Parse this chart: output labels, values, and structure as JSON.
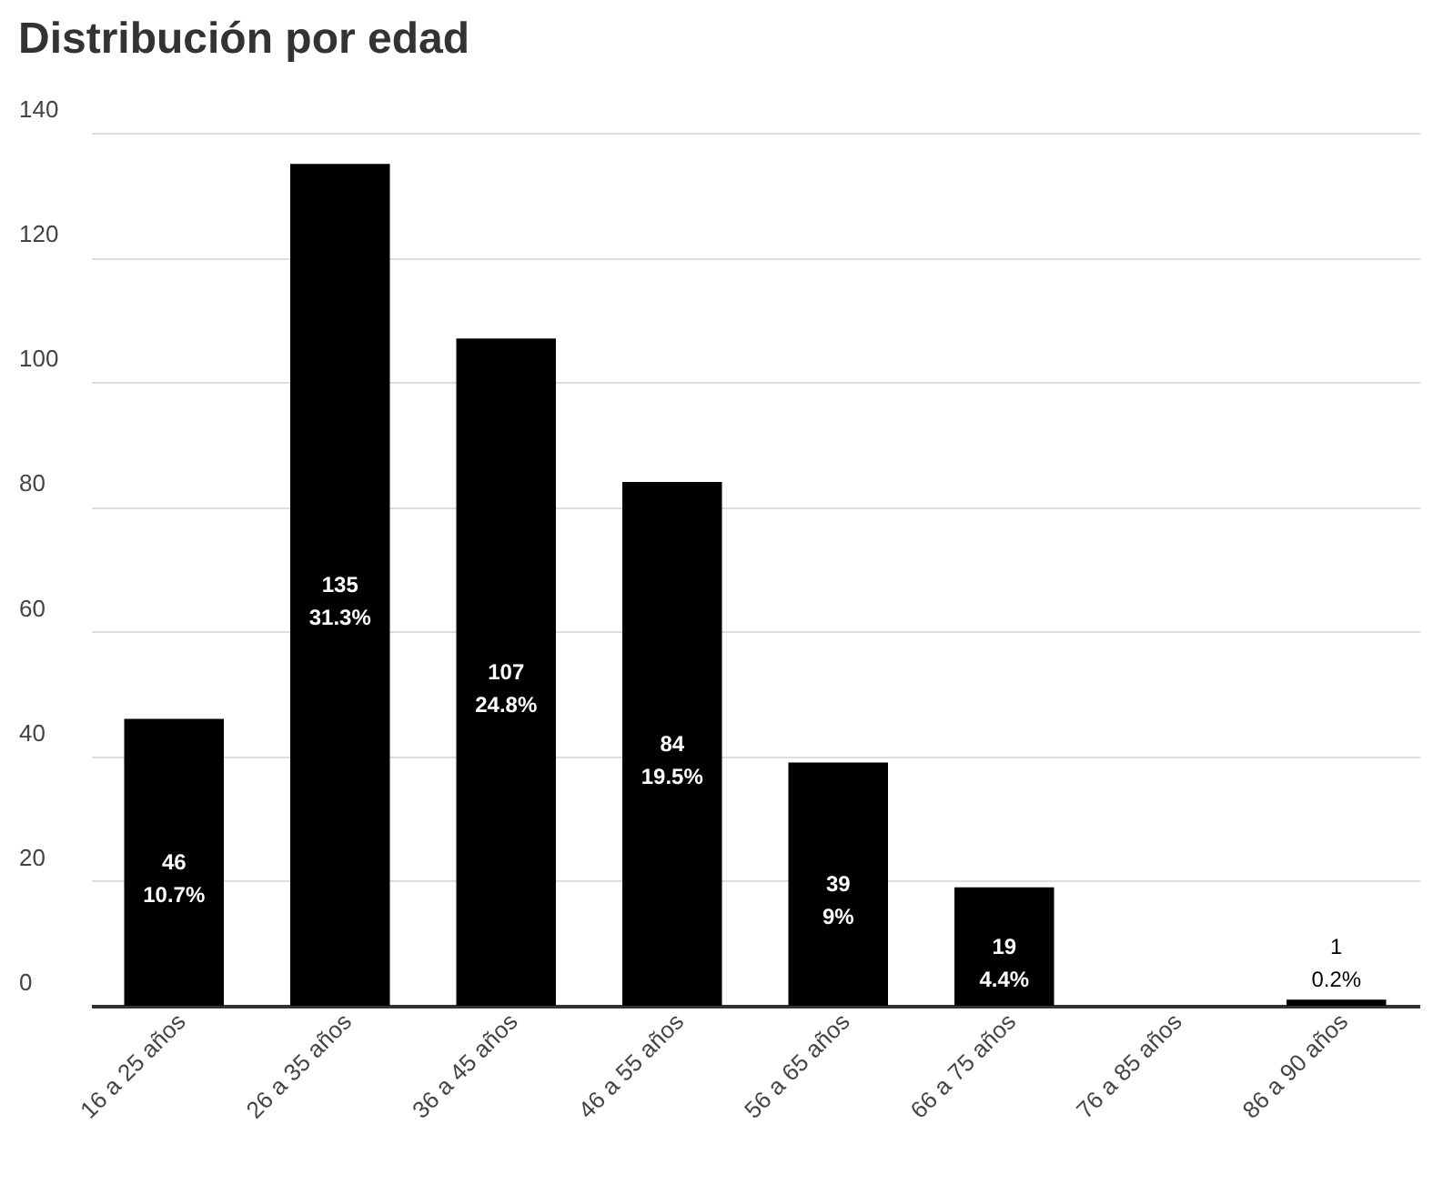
{
  "chart_data": {
    "type": "bar",
    "title": "Distribución por edad",
    "categories": [
      "16 a 25 años",
      "26 a 35 años",
      "36 a 45 años",
      "46 a 55 años",
      "56 a 65 años",
      "66 a 75 años",
      "76 a 85 años",
      "86 a 90 años"
    ],
    "values": [
      46,
      135,
      107,
      84,
      39,
      19,
      0,
      1
    ],
    "value_labels": [
      "46\n10.7%",
      "135\n31.3%",
      "107\n24.8%",
      "84\n19.5%",
      "39\n9%",
      "19\n4.4%",
      null,
      "1\n0.2%"
    ],
    "color": "#000000",
    "ylim": [
      0,
      140
    ],
    "yticks": [
      0,
      20,
      40,
      60,
      80,
      100,
      120,
      140
    ],
    "grid": "y"
  }
}
